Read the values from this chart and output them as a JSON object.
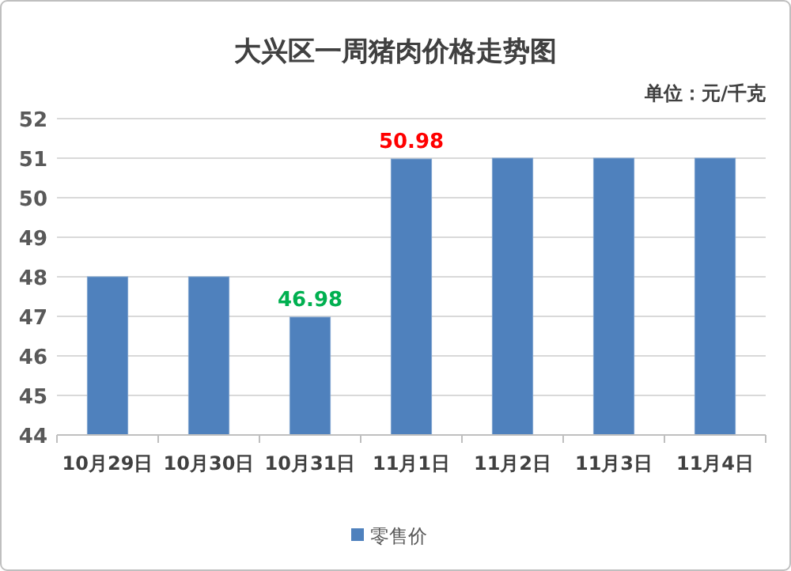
{
  "chart_data": {
    "type": "bar",
    "title": "大兴区一周猪肉价格走势图",
    "subtitle": "单位：元/千克",
    "categories": [
      "10月29日",
      "10月30日",
      "10月31日",
      "11月1日",
      "11月2日",
      "11月3日",
      "11月4日"
    ],
    "series": [
      {
        "name": "零售价",
        "color": "#4f81bd",
        "values": [
          48,
          48,
          46.98,
          50.98,
          51,
          51,
          51
        ],
        "value_labels": [
          null,
          null,
          "46.98",
          "50.98",
          null,
          null,
          null
        ]
      }
    ],
    "ylim": [
      44,
      52
    ],
    "yticks": [
      44,
      45,
      46,
      47,
      48,
      49,
      50,
      51,
      52
    ],
    "grid": "y",
    "legend": "bottom"
  }
}
